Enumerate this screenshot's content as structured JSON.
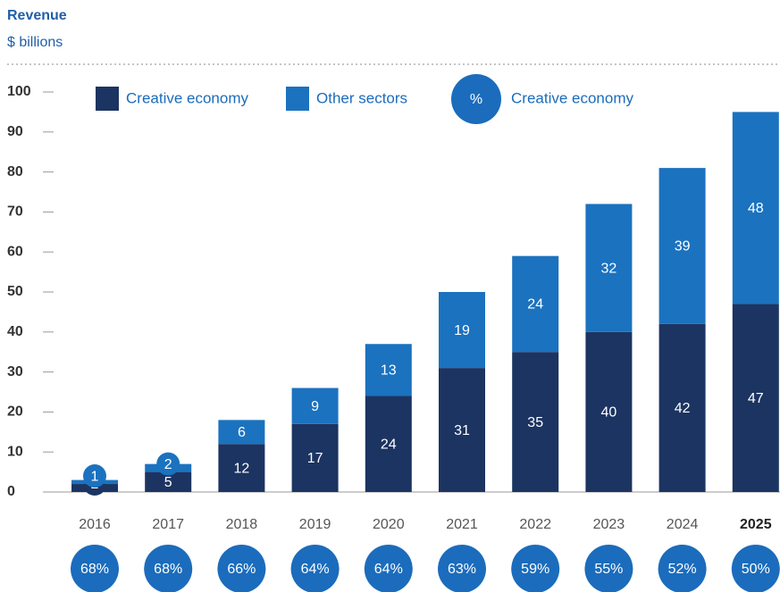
{
  "chart_data": {
    "type": "stacked-bar",
    "title": "Revenue",
    "subtitle": "$ billions",
    "categories": [
      "2016",
      "2017",
      "2018",
      "2019",
      "2020",
      "2021",
      "2022",
      "2023",
      "2024",
      "2025"
    ],
    "bold_categories": [
      "2025"
    ],
    "series": [
      {
        "name": "Creative economy",
        "color": "#1c3461",
        "values": [
          2,
          5,
          12,
          17,
          24,
          31,
          35,
          40,
          42,
          47
        ]
      },
      {
        "name": "Other sectors",
        "color": "#1b72bf",
        "values": [
          1,
          2,
          6,
          9,
          13,
          19,
          24,
          32,
          39,
          48
        ]
      }
    ],
    "share": {
      "symbol": "%",
      "name": "Creative economy",
      "color": "#1b6cbc",
      "values": [
        68,
        68,
        66,
        64,
        64,
        63,
        59,
        55,
        52,
        50
      ],
      "value_labels": [
        "68%",
        "68%",
        "66%",
        "64%",
        "64%",
        "63%",
        "59%",
        "55%",
        "52%",
        "50%"
      ]
    },
    "ylim": [
      0,
      100
    ],
    "yticks": [
      0,
      10,
      20,
      30,
      40,
      50,
      60,
      70,
      80,
      90,
      100
    ]
  }
}
